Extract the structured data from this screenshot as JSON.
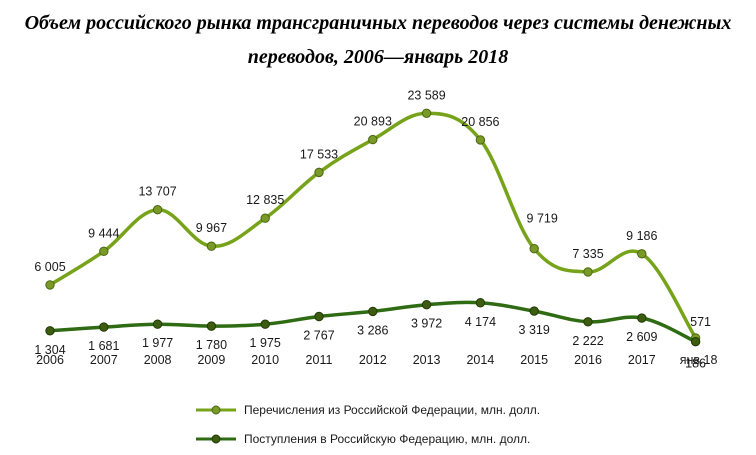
{
  "chart_data": {
    "type": "line",
    "title_line1": "Объем российского рынка трансграничных переводов через системы денежных",
    "title_line2": "переводов, 2006—январь 2018",
    "categories": [
      "2006",
      "2007",
      "2008",
      "2009",
      "2010",
      "2011",
      "2012",
      "2013",
      "2014",
      "2015",
      "2016",
      "2017",
      "янв.18"
    ],
    "series": [
      {
        "name": "Перечисления из Российской Федерации, млн. долл.",
        "color": "#77a31a",
        "values": [
          6005,
          9444,
          13707,
          9967,
          12835,
          17533,
          20893,
          23589,
          20856,
          9719,
          7335,
          9186,
          571
        ],
        "labels": [
          "6 005",
          "9 444",
          "13 707",
          "9 967",
          "12 835",
          "17 533",
          "20 893",
          "23 589",
          "20 856",
          "9 719",
          "7 335",
          "9 186",
          "571"
        ]
      },
      {
        "name": "Поступления в Российскую Федерацию, млн. долл.",
        "color": "#2e6b12",
        "values": [
          1304,
          1681,
          1977,
          1780,
          1975,
          2767,
          3286,
          3972,
          4174,
          3319,
          2222,
          2609,
          186
        ],
        "labels": [
          "1 304",
          "1 681",
          "1 977",
          "1 780",
          "1 975",
          "2 767",
          "3 286",
          "3 972",
          "4 174",
          "3 319",
          "2 222",
          "2 609",
          "186"
        ]
      }
    ],
    "legend_position": "bottom",
    "grid": false,
    "axes_visible": false
  }
}
